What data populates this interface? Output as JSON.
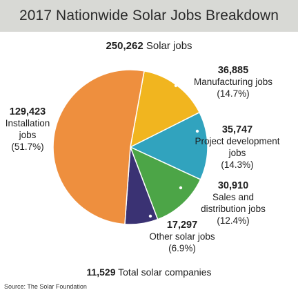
{
  "chart_data": {
    "type": "pie",
    "title": "2017 Nationwide Solar Jobs Breakdown",
    "total_value": "250,262",
    "total_label": "Solar jobs",
    "companies_value": "11,529",
    "companies_label": "Total solar companies",
    "source": "Source: The Solar Foundation",
    "slices": [
      {
        "value": 36885,
        "value_label": "36,885",
        "label_lines": [
          "Manufacturing jobs"
        ],
        "percent": "(14.7%)",
        "color": "#f1b51f"
      },
      {
        "value": 35747,
        "value_label": "35,747",
        "label_lines": [
          "Project development",
          "jobs"
        ],
        "percent": "(14.3%)",
        "color": "#31a3be"
      },
      {
        "value": 30910,
        "value_label": "30,910",
        "label_lines": [
          "Sales and",
          "distribution jobs"
        ],
        "percent": "(12.4%)",
        "color": "#4ca547"
      },
      {
        "value": 17297,
        "value_label": "17,297",
        "label_lines": [
          "Other solar jobs"
        ],
        "percent": "(6.9%)",
        "color": "#3a3273"
      },
      {
        "value": 129423,
        "value_label": "129,423",
        "label_lines": [
          "Installation",
          "jobs"
        ],
        "percent": "(51.7%)",
        "color": "#ee8f3e"
      }
    ]
  }
}
